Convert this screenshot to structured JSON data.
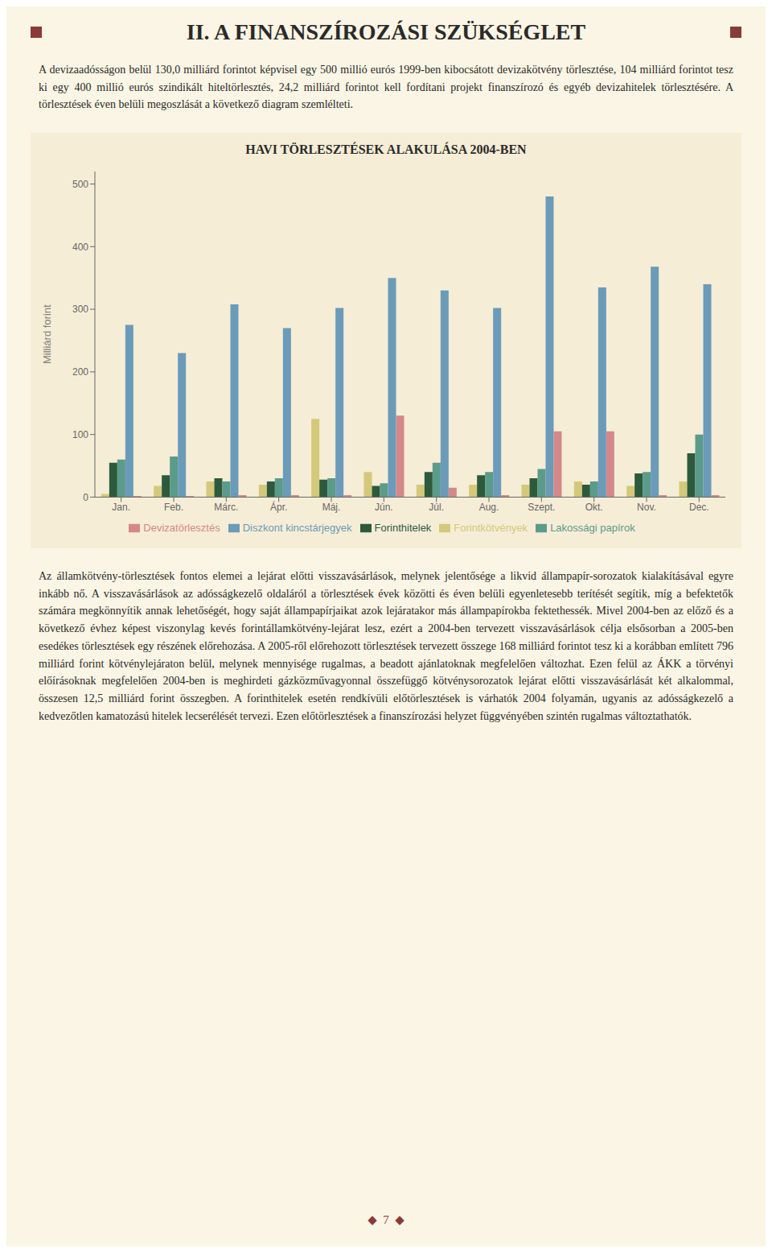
{
  "chart_data": {
    "type": "bar",
    "title": "HAVI TÖRLESZTÉSEK ALAKULÁSA 2004-BEN",
    "y_label": "Milliárd forint",
    "categories": [
      "Jan.",
      "Feb.",
      "Márc.",
      "Ápr.",
      "Máj.",
      "Jún.",
      "Júl.",
      "Aug.",
      "Szept.",
      "Okt.",
      "Nov.",
      "Dec."
    ],
    "series": [
      {
        "name": "Forintkötvények",
        "color": "#D4C97A",
        "values": [
          5,
          18,
          25,
          20,
          125,
          40,
          20,
          20,
          20,
          25,
          18,
          25
        ]
      },
      {
        "name": "Forinthitelek",
        "color": "#2D5A3D",
        "values": [
          55,
          35,
          30,
          25,
          28,
          18,
          40,
          35,
          30,
          20,
          38,
          70
        ]
      },
      {
        "name": "Lakossági papírok",
        "color": "#5B9B8A",
        "values": [
          60,
          65,
          25,
          30,
          30,
          22,
          55,
          40,
          45,
          25,
          40,
          100
        ]
      },
      {
        "name": "Diszkont kincstárjegyek",
        "color": "#6B9BB8",
        "values": [
          275,
          230,
          308,
          270,
          302,
          350,
          330,
          302,
          480,
          335,
          368,
          340
        ]
      },
      {
        "name": "Devizatörlesztés",
        "color": "#D4888A",
        "values": [
          2,
          2,
          3,
          3,
          3,
          130,
          15,
          3,
          105,
          105,
          3,
          3
        ]
      }
    ],
    "ylim": [
      0,
      520
    ],
    "yticks": [
      0,
      100,
      200,
      300,
      400,
      500
    ],
    "grid": false,
    "legend": "bottom",
    "annotations": [
      "II. A FINANSZÍROZÁSI SZÜKSÉGLET",
      "A devizaadósságon belül 130,0 milliárd forintot képvisel egy 500 millió eurós 1999-ben kibocsátott devizakötvény törlesztése, 104 milliárd forintot tesz ki egy 400 millió eurós szindikált hiteltörlesztés, 24,2 milliárd forintot kell fordítani projekt finanszírozó és egyéb devizahitelek törlesztésére. A törlesztések éven belüli megoszlását a következő diagram szemlélteti.",
      "Az államkötvény-törlesztések fontos elemei a lejárat előtti visszavásárlások, melynek jelentősége a likvid állampapír-sorozatok kialakításával egyre inkább nő. A visszavásárlások az adósságkezelő oldaláról a törlesztések évek közötti és éven belüli egyenletesebb terítését segítik, míg a befektetők számára megkönnyítik annak lehetőségét, hogy saját állampapírjaikat azok lejáratakor más állampapírokba fektethessék. Mivel 2004-ben az előző és a következő évhez képest viszonylag kevés forintállamkötvény-lejárat lesz, ezért a 2004-ben tervezett visszavásárlások célja elsősorban a 2005-ben esedékes törlesztések egy részének előrehozása. A 2005-ről előrehozott törlesztések tervezett összege 168 milliárd forintot tesz ki a korábban említett 796 milliárd forint kötvénylejáraton belül, melynek mennyisége rugalmas, a beadott ajánlatoknak megfelelően változhat. Ezen felül az ÁKK a törvényi előírásoknak megfelelően 2004-ben is meghirdeti gázközművagyonnal összefüggő kötvénysorozatok lejárat előtti visszavásárlását két alkalommal, összesen 12,5 milliárd forint összegben. A forinthitelek esetén rendkívüli előtörlesztések is várhatók 2004 folyamán, ugyanis az adósságkezelő a kedvezőtlen kamatozású hitelek lecserélését tervezi. Ezen előtörlesztések a finanszírozási helyzet függvényében szintén rugalmas változtathatók.",
      "◆  7  ◆"
    ]
  }
}
